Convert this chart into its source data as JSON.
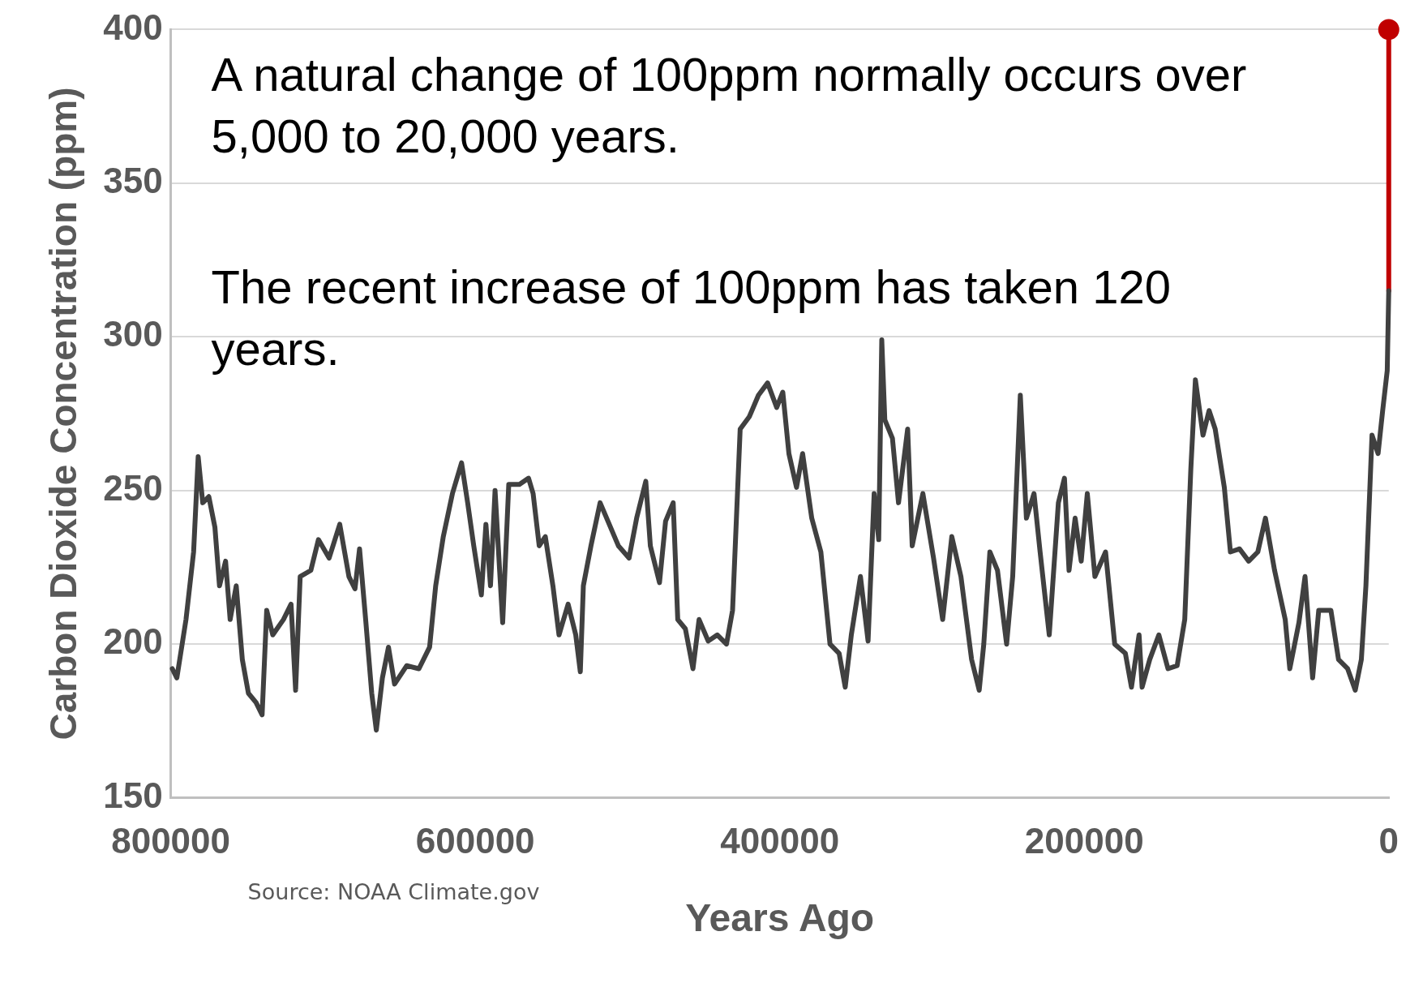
{
  "chart_data": {
    "type": "line",
    "xlabel": "Years Ago",
    "ylabel": "Carbon Dioxide Concentration (ppm)",
    "xlim": [
      800000,
      0
    ],
    "xticks": [
      800000,
      600000,
      400000,
      200000,
      0
    ],
    "ylim": [
      150,
      400
    ],
    "yticks": [
      150,
      200,
      250,
      300,
      350,
      400
    ],
    "grid": "y",
    "legend": false,
    "annotations": [
      "A natural change of 100ppm normally occurs over 5,000 to 20,000 years.",
      "The recent increase of 100ppm has taken 120 years.",
      "Source: NOAA Climate.gov"
    ],
    "series": [
      {
        "color": "#404040",
        "x": [
          799000,
          796000,
          790000,
          785000,
          782000,
          779000,
          775000,
          771000,
          768000,
          764000,
          761000,
          757000,
          753000,
          749000,
          744000,
          740000,
          737000,
          733000,
          726000,
          721000,
          718000,
          715000,
          708000,
          703000,
          696000,
          689000,
          683000,
          679000,
          676000,
          672000,
          668000,
          665000,
          661000,
          657000,
          653000,
          645000,
          637000,
          630000,
          626000,
          621000,
          615000,
          609000,
          605000,
          601000,
          596000,
          593000,
          590000,
          587000,
          584000,
          582000,
          578000,
          571000,
          565000,
          562000,
          558000,
          554000,
          549000,
          545000,
          539000,
          534000,
          531000,
          529000,
          524000,
          518000,
          512000,
          506000,
          499000,
          494000,
          488000,
          485000,
          479000,
          475000,
          470000,
          467000,
          462000,
          457000,
          453000,
          447000,
          441000,
          435000,
          431000,
          426000,
          420000,
          414000,
          408000,
          402000,
          398000,
          394000,
          389000,
          385000,
          379000,
          373000,
          367000,
          361000,
          357000,
          353000,
          347000,
          342000,
          338000,
          335000,
          333000,
          331000,
          326000,
          322000,
          316000,
          313000,
          306000,
          299000,
          293000,
          287000,
          281000,
          274000,
          269000,
          266000,
          262000,
          257000,
          251000,
          247000,
          242000,
          238000,
          233000,
          229000,
          223000,
          217000,
          213000,
          210000,
          206000,
          202000,
          198000,
          193000,
          186000,
          180000,
          173000,
          169000,
          164000,
          162000,
          157000,
          151000,
          145000,
          139000,
          134000,
          130000,
          127000,
          122000,
          118000,
          114000,
          108000,
          104000,
          98000,
          92000,
          86000,
          81000,
          75000,
          68000,
          65000,
          59000,
          55000,
          50000,
          46000,
          38000,
          33000,
          27000,
          22000,
          18000,
          15000,
          11000,
          7000,
          4000,
          1000,
          0
        ],
        "values": [
          192,
          189,
          208,
          230,
          261,
          246,
          248,
          238,
          219,
          227,
          208,
          219,
          195,
          184,
          181,
          177,
          211,
          203,
          208,
          213,
          185,
          222,
          224,
          234,
          228,
          239,
          222,
          218,
          231,
          208,
          184,
          172,
          189,
          199,
          187,
          193,
          192,
          199,
          219,
          235,
          249,
          259,
          246,
          232,
          216,
          239,
          219,
          250,
          224,
          207,
          252,
          252,
          254,
          249,
          232,
          235,
          219,
          203,
          213,
          203,
          191,
          219,
          232,
          246,
          239,
          232,
          228,
          241,
          253,
          232,
          220,
          240,
          246,
          208,
          205,
          192,
          208,
          201,
          203,
          200,
          211,
          270,
          274,
          281,
          285,
          277,
          282,
          262,
          251,
          262,
          241,
          230,
          200,
          197,
          186,
          203,
          222,
          201,
          249,
          234,
          299,
          273,
          267,
          246,
          270,
          232,
          249,
          228,
          208,
          235,
          222,
          195,
          185,
          200,
          230,
          224,
          200,
          222,
          281,
          241,
          249,
          230,
          203,
          246,
          254,
          224,
          241,
          227,
          249,
          222,
          230,
          200,
          197,
          186,
          203,
          186,
          195,
          203,
          192,
          193,
          208,
          257,
          286,
          268,
          276,
          270,
          251,
          230,
          231,
          227,
          230,
          241,
          224,
          208,
          192,
          207,
          222,
          189,
          211,
          211,
          195,
          192,
          185,
          195,
          219,
          268,
          262,
          276,
          289,
          315
        ]
      },
      {
        "type": "line",
        "color": "#c00000",
        "x": [
          0,
          0
        ],
        "values": [
          315,
          400
        ]
      },
      {
        "type": "scatter",
        "color": "#c00000",
        "marker": "circle",
        "x": [
          0
        ],
        "values": [
          400
        ]
      }
    ]
  }
}
